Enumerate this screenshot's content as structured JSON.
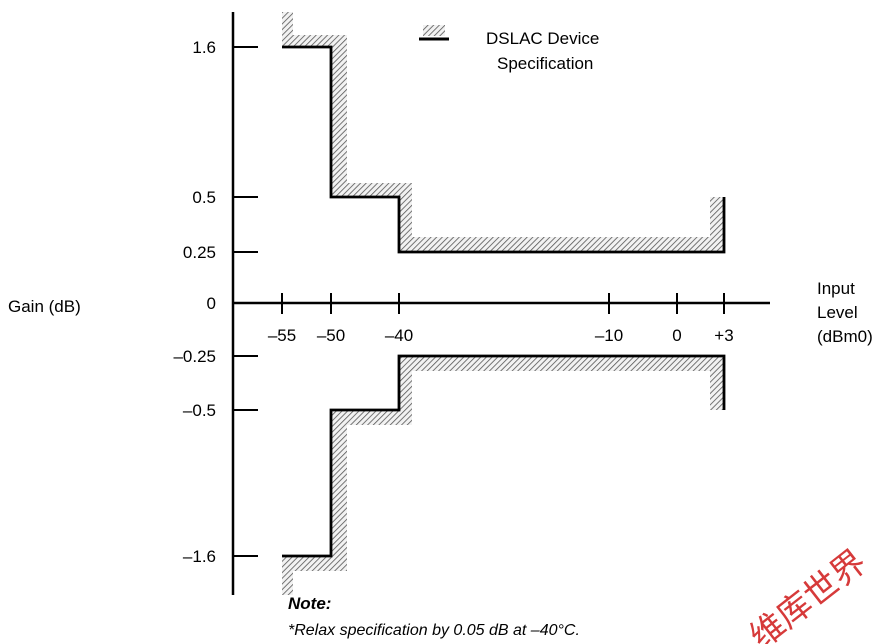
{
  "chart_data": {
    "type": "line",
    "ylabel": "Gain (dB)",
    "xlabel_lines": [
      "Input",
      "Level",
      "(dBm0)"
    ],
    "x_ticks": [
      -55,
      -50,
      -40,
      -10,
      0,
      3
    ],
    "x_tick_labels": [
      "–55",
      "–50",
      "–40",
      "–10",
      "0",
      "+3"
    ],
    "y_ticks": [
      1.6,
      0.5,
      0.25,
      0,
      -0.25,
      -0.5,
      -1.6
    ],
    "y_tick_labels": [
      "1.6",
      "0.5",
      "0.25",
      "0",
      "–0.25",
      "–0.5",
      "–1.6"
    ],
    "legend": [
      "DSLAC Device",
      "Specification"
    ],
    "series": [
      {
        "name": "DSLAC Device Specification (upper limit)",
        "points": [
          [
            -55,
            1.6
          ],
          [
            -50,
            1.6
          ],
          [
            -50,
            0.5
          ],
          [
            -40,
            0.5
          ],
          [
            -40,
            0.25
          ],
          [
            3,
            0.25
          ],
          [
            3,
            0.5
          ]
        ]
      },
      {
        "name": "DSLAC Device Specification (lower limit)",
        "points": [
          [
            -55,
            -1.6
          ],
          [
            -50,
            -1.6
          ],
          [
            -50,
            -0.5
          ],
          [
            -40,
            -0.5
          ],
          [
            -40,
            -0.25
          ],
          [
            3,
            -0.25
          ],
          [
            3,
            -0.5
          ]
        ]
      }
    ]
  },
  "note": {
    "title": "Note:",
    "body": "*Relax specification by 0.05 dB at –40°C."
  },
  "watermark": "维库世界"
}
